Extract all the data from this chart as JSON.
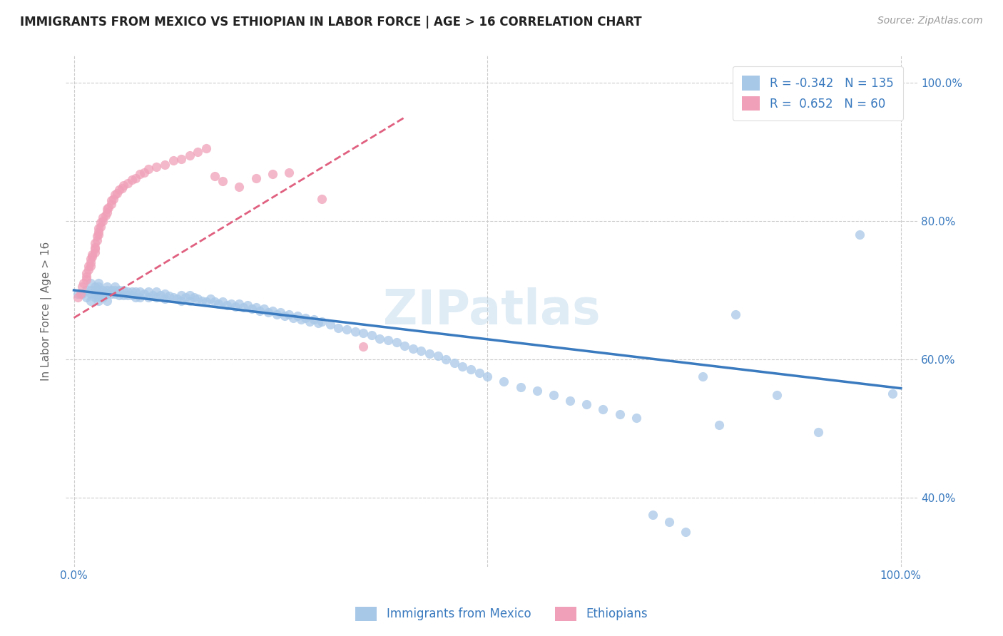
{
  "title": "IMMIGRANTS FROM MEXICO VS ETHIOPIAN IN LABOR FORCE | AGE > 16 CORRELATION CHART",
  "source_text": "Source: ZipAtlas.com",
  "ylabel": "In Labor Force | Age > 16",
  "blue_R": "-0.342",
  "blue_N": "135",
  "pink_R": "0.652",
  "pink_N": "60",
  "blue_color": "#a8c8e8",
  "pink_color": "#f0a0b8",
  "blue_line_color": "#3a7abf",
  "pink_line_color": "#e06080",
  "watermark": "ZIPatlas",
  "legend_blue_label": "Immigrants from Mexico",
  "legend_pink_label": "Ethiopians",
  "blue_scatter_x": [
    0.005,
    0.01,
    0.015,
    0.015,
    0.02,
    0.02,
    0.02,
    0.02,
    0.025,
    0.025,
    0.025,
    0.025,
    0.03,
    0.03,
    0.03,
    0.03,
    0.03,
    0.03,
    0.035,
    0.035,
    0.035,
    0.04,
    0.04,
    0.04,
    0.04,
    0.045,
    0.045,
    0.05,
    0.05,
    0.05,
    0.055,
    0.055,
    0.06,
    0.06,
    0.065,
    0.065,
    0.07,
    0.07,
    0.075,
    0.075,
    0.08,
    0.08,
    0.085,
    0.09,
    0.09,
    0.095,
    0.1,
    0.1,
    0.105,
    0.11,
    0.11,
    0.115,
    0.12,
    0.125,
    0.13,
    0.13,
    0.135,
    0.14,
    0.14,
    0.145,
    0.15,
    0.155,
    0.16,
    0.165,
    0.17,
    0.175,
    0.18,
    0.185,
    0.19,
    0.195,
    0.2,
    0.205,
    0.21,
    0.215,
    0.22,
    0.225,
    0.23,
    0.235,
    0.24,
    0.245,
    0.25,
    0.255,
    0.26,
    0.265,
    0.27,
    0.275,
    0.28,
    0.285,
    0.29,
    0.295,
    0.3,
    0.31,
    0.32,
    0.33,
    0.34,
    0.35,
    0.36,
    0.37,
    0.38,
    0.39,
    0.4,
    0.41,
    0.42,
    0.43,
    0.44,
    0.45,
    0.46,
    0.47,
    0.48,
    0.49,
    0.5,
    0.52,
    0.54,
    0.56,
    0.58,
    0.6,
    0.62,
    0.64,
    0.66,
    0.68,
    0.7,
    0.72,
    0.74,
    0.76,
    0.78,
    0.8,
    0.85,
    0.9,
    0.95,
    0.99
  ],
  "blue_scatter_y": [
    0.695,
    0.695,
    0.7,
    0.69,
    0.71,
    0.7,
    0.695,
    0.685,
    0.705,
    0.7,
    0.695,
    0.69,
    0.71,
    0.705,
    0.7,
    0.695,
    0.69,
    0.685,
    0.7,
    0.695,
    0.69,
    0.705,
    0.7,
    0.695,
    0.685,
    0.7,
    0.695,
    0.705,
    0.7,
    0.695,
    0.7,
    0.693,
    0.7,
    0.693,
    0.698,
    0.693,
    0.698,
    0.693,
    0.698,
    0.69,
    0.698,
    0.69,
    0.695,
    0.698,
    0.69,
    0.693,
    0.698,
    0.69,
    0.693,
    0.695,
    0.688,
    0.692,
    0.69,
    0.688,
    0.693,
    0.685,
    0.69,
    0.693,
    0.685,
    0.69,
    0.688,
    0.685,
    0.683,
    0.688,
    0.683,
    0.68,
    0.683,
    0.678,
    0.68,
    0.676,
    0.68,
    0.675,
    0.678,
    0.673,
    0.675,
    0.67,
    0.673,
    0.668,
    0.67,
    0.665,
    0.668,
    0.663,
    0.665,
    0.66,
    0.663,
    0.658,
    0.66,
    0.655,
    0.658,
    0.653,
    0.655,
    0.65,
    0.645,
    0.643,
    0.64,
    0.638,
    0.635,
    0.63,
    0.628,
    0.625,
    0.62,
    0.615,
    0.612,
    0.608,
    0.605,
    0.6,
    0.595,
    0.59,
    0.585,
    0.58,
    0.575,
    0.568,
    0.56,
    0.555,
    0.548,
    0.54,
    0.535,
    0.528,
    0.52,
    0.515,
    0.375,
    0.365,
    0.35,
    0.575,
    0.505,
    0.665,
    0.548,
    0.495,
    0.78,
    0.55
  ],
  "pink_scatter_x": [
    0.005,
    0.008,
    0.01,
    0.012,
    0.015,
    0.015,
    0.015,
    0.018,
    0.018,
    0.02,
    0.02,
    0.02,
    0.022,
    0.022,
    0.025,
    0.025,
    0.025,
    0.025,
    0.028,
    0.028,
    0.03,
    0.03,
    0.03,
    0.032,
    0.032,
    0.035,
    0.035,
    0.038,
    0.04,
    0.04,
    0.042,
    0.045,
    0.045,
    0.048,
    0.05,
    0.052,
    0.055,
    0.058,
    0.06,
    0.065,
    0.07,
    0.075,
    0.08,
    0.085,
    0.09,
    0.1,
    0.11,
    0.12,
    0.13,
    0.14,
    0.15,
    0.16,
    0.17,
    0.18,
    0.2,
    0.22,
    0.24,
    0.26,
    0.3,
    0.35
  ],
  "pink_scatter_y": [
    0.69,
    0.695,
    0.705,
    0.71,
    0.715,
    0.72,
    0.725,
    0.73,
    0.735,
    0.735,
    0.74,
    0.745,
    0.748,
    0.752,
    0.755,
    0.76,
    0.762,
    0.768,
    0.772,
    0.778,
    0.78,
    0.785,
    0.79,
    0.792,
    0.798,
    0.8,
    0.805,
    0.808,
    0.812,
    0.818,
    0.82,
    0.825,
    0.83,
    0.832,
    0.838,
    0.84,
    0.845,
    0.848,
    0.852,
    0.855,
    0.86,
    0.862,
    0.868,
    0.87,
    0.875,
    0.878,
    0.882,
    0.888,
    0.89,
    0.895,
    0.9,
    0.905,
    0.865,
    0.858,
    0.85,
    0.862,
    0.868,
    0.87,
    0.832,
    0.618
  ],
  "blue_line_x0": 0.0,
  "blue_line_x1": 1.0,
  "blue_line_y0": 0.7,
  "blue_line_y1": 0.558,
  "pink_line_x0": 0.0,
  "pink_line_x1": 0.4,
  "pink_line_y0": 0.66,
  "pink_line_y1": 0.95,
  "background_color": "#ffffff",
  "grid_color": "#cccccc",
  "xlim": [
    -0.01,
    1.02
  ],
  "ylim": [
    0.3,
    1.04
  ],
  "y_ticks": [
    0.4,
    0.6,
    0.8,
    1.0
  ],
  "y_tick_labels": [
    "40.0%",
    "60.0%",
    "80.0%",
    "100.0%"
  ],
  "x_ticks": [
    0.0,
    0.5,
    1.0
  ],
  "x_tick_labels": [
    "0.0%",
    "",
    "100.0%"
  ],
  "title_fontsize": 12,
  "tick_fontsize": 11,
  "legend_fontsize": 12,
  "source_fontsize": 10
}
